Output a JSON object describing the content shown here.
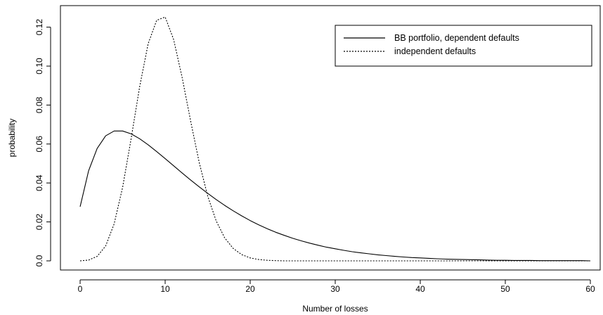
{
  "chart_data": {
    "type": "line",
    "xlabel": "Number of losses",
    "ylabel": "probability",
    "xlim": [
      0,
      60
    ],
    "ylim": [
      0,
      0.126
    ],
    "x_ticks": [
      "0",
      "10",
      "20",
      "30",
      "40",
      "50",
      "60"
    ],
    "y_ticks": [
      "0.0",
      "0.02",
      "0.04",
      "0.06",
      "0.08",
      "0.10",
      "0.12"
    ],
    "grid": false,
    "legend_position": "top-right",
    "series": [
      {
        "name": "BB portfolio, dependent defaults",
        "line_style": "solid",
        "color": "#000000",
        "x": [
          0,
          1,
          2,
          3,
          4,
          5,
          6,
          7,
          8,
          9,
          10,
          11,
          12,
          13,
          14,
          15,
          16,
          17,
          18,
          19,
          20,
          21,
          22,
          23,
          24,
          25,
          26,
          27,
          28,
          29,
          30,
          31,
          32,
          33,
          34,
          35,
          36,
          37,
          38,
          39,
          40,
          41,
          42,
          43,
          44,
          45,
          46,
          47,
          48,
          49,
          50,
          51,
          52,
          53,
          54,
          55,
          56,
          57,
          58,
          59,
          60
        ],
        "y": [
          0.0278,
          0.0463,
          0.0577,
          0.0642,
          0.0667,
          0.0667,
          0.0652,
          0.0627,
          0.0596,
          0.0561,
          0.0525,
          0.0488,
          0.0451,
          0.0415,
          0.038,
          0.0347,
          0.0315,
          0.0285,
          0.0257,
          0.0231,
          0.0207,
          0.0185,
          0.0165,
          0.0147,
          0.0131,
          0.0116,
          0.0103,
          0.0091,
          0.008,
          0.007,
          0.0062,
          0.0054,
          0.0047,
          0.0041,
          0.0036,
          0.0031,
          0.0027,
          0.0023,
          0.002,
          0.0017,
          0.0015,
          0.0013,
          0.0011,
          0.0009,
          0.0008,
          0.0007,
          0.0006,
          0.0005,
          0.0004,
          0.0003,
          0.0003,
          0.0002,
          0.0002,
          0.0002,
          0.0001,
          0.0001,
          0.0001,
          0.0001,
          0.0001,
          0.0001,
          0.0
        ]
      },
      {
        "name": "independent defaults",
        "line_style": "dotted",
        "color": "#000000",
        "x": [
          0,
          1,
          2,
          3,
          4,
          5,
          6,
          7,
          8,
          9,
          10,
          11,
          12,
          13,
          14,
          15,
          16,
          17,
          18,
          19,
          20,
          21,
          22,
          23,
          24,
          25,
          26,
          27,
          28,
          29,
          30,
          31,
          32,
          33,
          34,
          35,
          36,
          37,
          38,
          39,
          40,
          41,
          42,
          43,
          44,
          45,
          46,
          47,
          48,
          49,
          50,
          51,
          52,
          53,
          54,
          55,
          56,
          57,
          58,
          59,
          60
        ],
        "y": [
          0.0,
          0.0004,
          0.0023,
          0.0076,
          0.019,
          0.0378,
          0.0628,
          0.0894,
          0.1115,
          0.1235,
          0.1252,
          0.1136,
          0.0941,
          0.0717,
          0.0506,
          0.0333,
          0.0205,
          0.0118,
          0.0064,
          0.0032,
          0.0015,
          0.0007,
          0.0003,
          0.0001,
          0.0,
          0.0,
          0.0,
          0.0,
          0.0,
          0.0,
          0.0,
          0.0,
          0.0,
          0.0,
          0.0,
          0.0,
          0.0,
          0.0,
          0.0,
          0.0,
          0.0,
          0.0,
          0.0,
          0.0,
          0.0,
          0.0,
          0.0,
          0.0,
          0.0,
          0.0,
          0.0,
          0.0,
          0.0,
          0.0,
          0.0,
          0.0,
          0.0,
          0.0,
          0.0,
          0.0,
          0.0
        ]
      }
    ]
  }
}
